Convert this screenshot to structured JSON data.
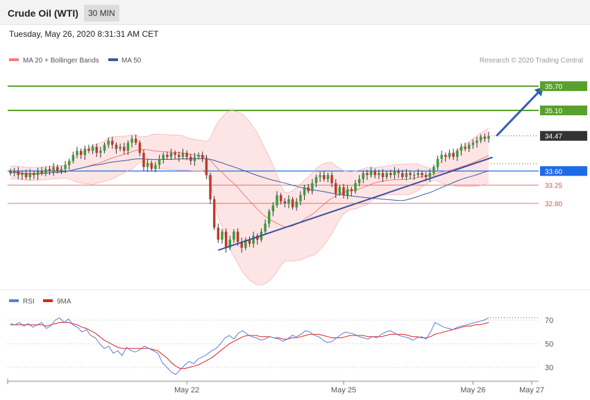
{
  "header": {
    "title": "Crude Oil (WTI)",
    "timeframe": "30 MIN"
  },
  "date_line": "Tuesday, May 26, 2020 8:31:31 AM CET",
  "legend": {
    "ma20_label": "MA 20 + Bollinger Bands",
    "ma50_label": "MA 50",
    "ma20_color": "#f47b7b",
    "ma50_color": "#3a5a9c",
    "credit": "Research © 2020 Trading Central"
  },
  "rsi_legend": {
    "rsi_label": "RSI",
    "ma_label": "9MA",
    "rsi_color": "#5b7bd5",
    "ma_color": "#e02020"
  },
  "chart_data": [
    {
      "type": "candlestick",
      "ylim": [
        30.7,
        36.2
      ],
      "grid": false,
      "legend_placement": "top-left",
      "levels": [
        {
          "value": 35.7,
          "label": "35.70",
          "kind": "resistance-band",
          "color": "#5aa02c"
        },
        {
          "value": 35.1,
          "label": "35.10",
          "kind": "resistance-band",
          "color": "#5aa02c"
        },
        {
          "value": 34.47,
          "label": "34.47",
          "kind": "last-price",
          "color": "#333333"
        },
        {
          "value": 33.6,
          "label": "33.60",
          "kind": "pivot",
          "color": "#1e6be6"
        },
        {
          "value": 33.25,
          "label": "33.25",
          "kind": "support",
          "color": "#e05050"
        },
        {
          "value": 32.8,
          "label": "32.80",
          "kind": "support",
          "color": "#e05050"
        }
      ],
      "trendline": {
        "from": {
          "bar": 53,
          "price": 31.64
        },
        "to": {
          "bar": 123,
          "price": 33.94
        }
      },
      "target_arrow": {
        "from": {
          "bar": 124,
          "price": 34.47
        },
        "to": {
          "bar": 136,
          "price": 35.68
        }
      },
      "x_ticks": [
        "May 22",
        "May 25",
        "May 26",
        "May 27"
      ],
      "candles": [
        [
          33.6,
          33.55
        ],
        [
          33.55,
          33.6
        ],
        [
          33.6,
          33.5
        ],
        [
          33.5,
          33.55
        ],
        [
          33.55,
          33.45
        ],
        [
          33.45,
          33.55
        ],
        [
          33.55,
          33.5
        ],
        [
          33.5,
          33.6
        ],
        [
          33.6,
          33.55
        ],
        [
          33.55,
          33.65
        ],
        [
          33.65,
          33.6
        ],
        [
          33.6,
          33.7
        ],
        [
          33.7,
          33.6
        ],
        [
          33.6,
          33.65
        ],
        [
          33.65,
          33.75
        ],
        [
          33.75,
          33.85
        ],
        [
          33.85,
          34.0
        ],
        [
          34.0,
          34.1
        ],
        [
          34.1,
          34.0
        ],
        [
          34.0,
          34.15
        ],
        [
          34.15,
          34.1
        ],
        [
          34.1,
          34.2
        ],
        [
          34.2,
          34.05
        ],
        [
          34.05,
          34.1
        ],
        [
          34.1,
          34.25
        ],
        [
          34.25,
          34.35
        ],
        [
          34.35,
          34.25
        ],
        [
          34.25,
          34.15
        ],
        [
          34.15,
          34.2
        ],
        [
          34.2,
          34.1
        ],
        [
          34.1,
          34.3
        ],
        [
          34.3,
          34.4
        ],
        [
          34.4,
          34.3
        ],
        [
          34.3,
          34.05
        ],
        [
          34.05,
          33.7
        ],
        [
          33.7,
          33.8
        ],
        [
          33.8,
          33.65
        ],
        [
          33.65,
          33.75
        ],
        [
          33.75,
          33.9
        ],
        [
          33.9,
          34.0
        ],
        [
          34.0,
          33.95
        ],
        [
          33.95,
          34.05
        ],
        [
          34.05,
          34.0
        ],
        [
          34.0,
          33.95
        ],
        [
          33.95,
          34.05
        ],
        [
          34.05,
          33.95
        ],
        [
          33.95,
          33.85
        ],
        [
          33.85,
          33.95
        ],
        [
          33.95,
          34.0
        ],
        [
          34.0,
          33.9
        ],
        [
          33.9,
          33.5
        ],
        [
          33.5,
          32.9
        ],
        [
          32.9,
          32.2
        ],
        [
          32.2,
          31.9
        ],
        [
          31.9,
          32.1
        ],
        [
          32.1,
          31.7
        ],
        [
          31.7,
          31.9
        ],
        [
          31.9,
          32.1
        ],
        [
          32.1,
          31.85
        ],
        [
          31.85,
          31.7
        ],
        [
          31.7,
          31.9
        ],
        [
          31.9,
          31.8
        ],
        [
          31.8,
          32.0
        ],
        [
          32.0,
          31.9
        ],
        [
          31.9,
          32.1
        ],
        [
          32.1,
          32.3
        ],
        [
          32.3,
          32.6
        ],
        [
          32.6,
          32.75
        ],
        [
          32.75,
          33.0
        ],
        [
          33.0,
          32.85
        ],
        [
          32.85,
          32.8
        ],
        [
          32.8,
          32.9
        ],
        [
          32.9,
          32.7
        ],
        [
          32.7,
          32.85
        ],
        [
          32.85,
          33.0
        ],
        [
          33.0,
          33.2
        ],
        [
          33.2,
          33.1
        ],
        [
          33.1,
          33.3
        ],
        [
          33.3,
          33.45
        ],
        [
          33.45,
          33.5
        ],
        [
          33.5,
          33.4
        ],
        [
          33.4,
          33.5
        ],
        [
          33.5,
          33.3
        ],
        [
          33.3,
          33.05
        ],
        [
          33.05,
          33.2
        ],
        [
          33.2,
          33.0
        ],
        [
          33.0,
          33.15
        ],
        [
          33.15,
          33.1
        ],
        [
          33.1,
          33.3
        ],
        [
          33.3,
          33.4
        ],
        [
          33.4,
          33.55
        ],
        [
          33.55,
          33.5
        ],
        [
          33.5,
          33.6
        ],
        [
          33.6,
          33.5
        ],
        [
          33.5,
          33.55
        ],
        [
          33.55,
          33.45
        ],
        [
          33.45,
          33.55
        ],
        [
          33.55,
          33.5
        ],
        [
          33.5,
          33.6
        ],
        [
          33.6,
          33.55
        ],
        [
          33.55,
          33.45
        ],
        [
          33.45,
          33.55
        ],
        [
          33.55,
          33.5
        ],
        [
          33.5,
          33.5
        ],
        [
          33.5,
          33.55
        ],
        [
          33.55,
          33.5
        ],
        [
          33.5,
          33.45
        ],
        [
          33.45,
          33.55
        ],
        [
          33.55,
          33.7
        ],
        [
          33.7,
          33.9
        ],
        [
          33.9,
          34.0
        ],
        [
          34.0,
          33.95
        ],
        [
          33.95,
          34.05
        ],
        [
          34.05,
          33.95
        ],
        [
          33.95,
          34.1
        ],
        [
          34.1,
          34.2
        ],
        [
          34.2,
          34.15
        ],
        [
          34.15,
          34.25
        ],
        [
          34.25,
          34.3
        ],
        [
          34.3,
          34.35
        ],
        [
          34.35,
          34.45
        ],
        [
          34.45,
          34.4
        ],
        [
          34.4,
          34.47
        ]
      ]
    },
    {
      "type": "line",
      "ylim": [
        20,
        80
      ],
      "y_ticks": [
        70,
        50,
        30
      ],
      "series": [
        {
          "name": "RSI",
          "values": [
            67,
            66,
            68,
            65,
            67,
            64,
            66,
            68,
            63,
            65,
            70,
            72,
            68,
            71,
            66,
            64,
            60,
            62,
            57,
            55,
            50,
            46,
            48,
            42,
            44,
            40,
            47,
            44,
            43,
            45,
            48,
            46,
            44,
            42,
            34,
            30,
            26,
            24,
            28,
            32,
            35,
            33,
            37,
            39,
            41,
            44,
            46,
            50,
            55,
            57,
            54,
            59,
            61,
            58,
            56,
            55,
            53,
            54,
            56,
            55,
            54,
            52,
            54,
            57,
            56,
            58,
            61,
            60,
            57,
            56,
            53,
            51,
            52,
            55,
            58,
            60,
            59,
            58,
            56,
            55,
            54,
            56,
            55,
            58,
            60,
            61,
            59,
            57,
            56,
            55,
            53,
            55,
            56,
            54,
            60,
            68,
            66,
            64,
            63,
            62,
            64,
            65,
            66,
            67,
            68,
            69,
            70,
            72
          ]
        },
        {
          "name": "9MA",
          "values": [
            66,
            66,
            66,
            66,
            66,
            66,
            66,
            66,
            65,
            66,
            67,
            68,
            68,
            68,
            67,
            66,
            64,
            63,
            61,
            59,
            56,
            53,
            51,
            49,
            47,
            46,
            46,
            46,
            46,
            46,
            46,
            46,
            45,
            44,
            41,
            38,
            34,
            31,
            29,
            29,
            30,
            31,
            32,
            34,
            36,
            38,
            41,
            44,
            47,
            50,
            52,
            54,
            56,
            57,
            57,
            57,
            56,
            56,
            56,
            55,
            55,
            54,
            54,
            55,
            55,
            56,
            57,
            58,
            58,
            58,
            57,
            56,
            55,
            55,
            55,
            56,
            57,
            57,
            57,
            57,
            56,
            56,
            56,
            56,
            57,
            58,
            58,
            58,
            58,
            57,
            56,
            56,
            55,
            55,
            56,
            58,
            59,
            60,
            61,
            62,
            63,
            64,
            65,
            65,
            66,
            66,
            67,
            68
          ]
        }
      ]
    }
  ]
}
